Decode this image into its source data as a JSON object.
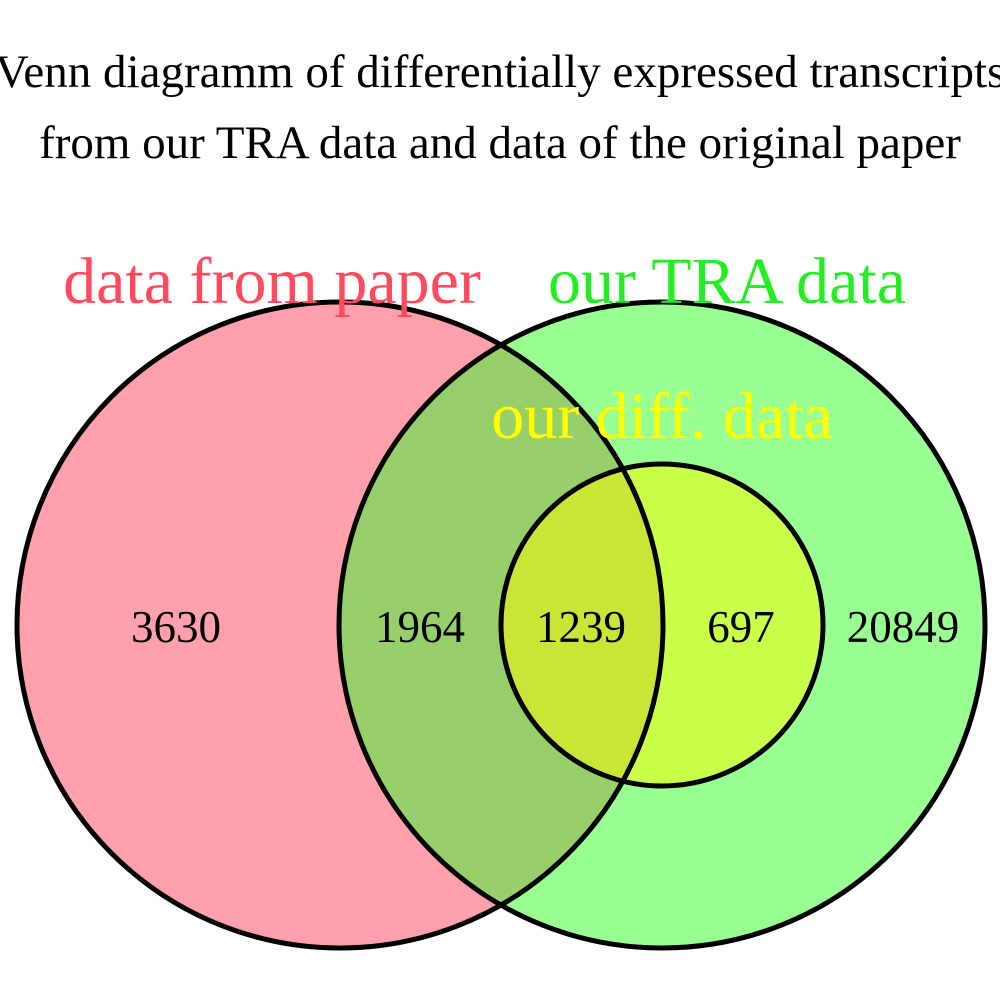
{
  "title": {
    "line1": "Venn diagramm of differentially expressed transcripts",
    "line2": "from our TRA data and data of the original paper"
  },
  "sets": {
    "paper": {
      "label": "data from paper",
      "color": "#ff4a5e",
      "fill": "#ffa0ac"
    },
    "tra": {
      "label": "our TRA data",
      "color": "#22ee22",
      "fill": "#99ff93"
    },
    "diff": {
      "label": "our diff. data",
      "color": "#ffff00",
      "fill": "#c9ff48"
    }
  },
  "regions": {
    "paper_only": "3630",
    "paper_and_tra_only": "1964",
    "all_three": "1239",
    "tra_and_diff_only": "697",
    "tra_only": "20849"
  },
  "overlap_colors": {
    "paper_and_tra": "#97cf6a",
    "all_three": "#cbe537"
  }
}
